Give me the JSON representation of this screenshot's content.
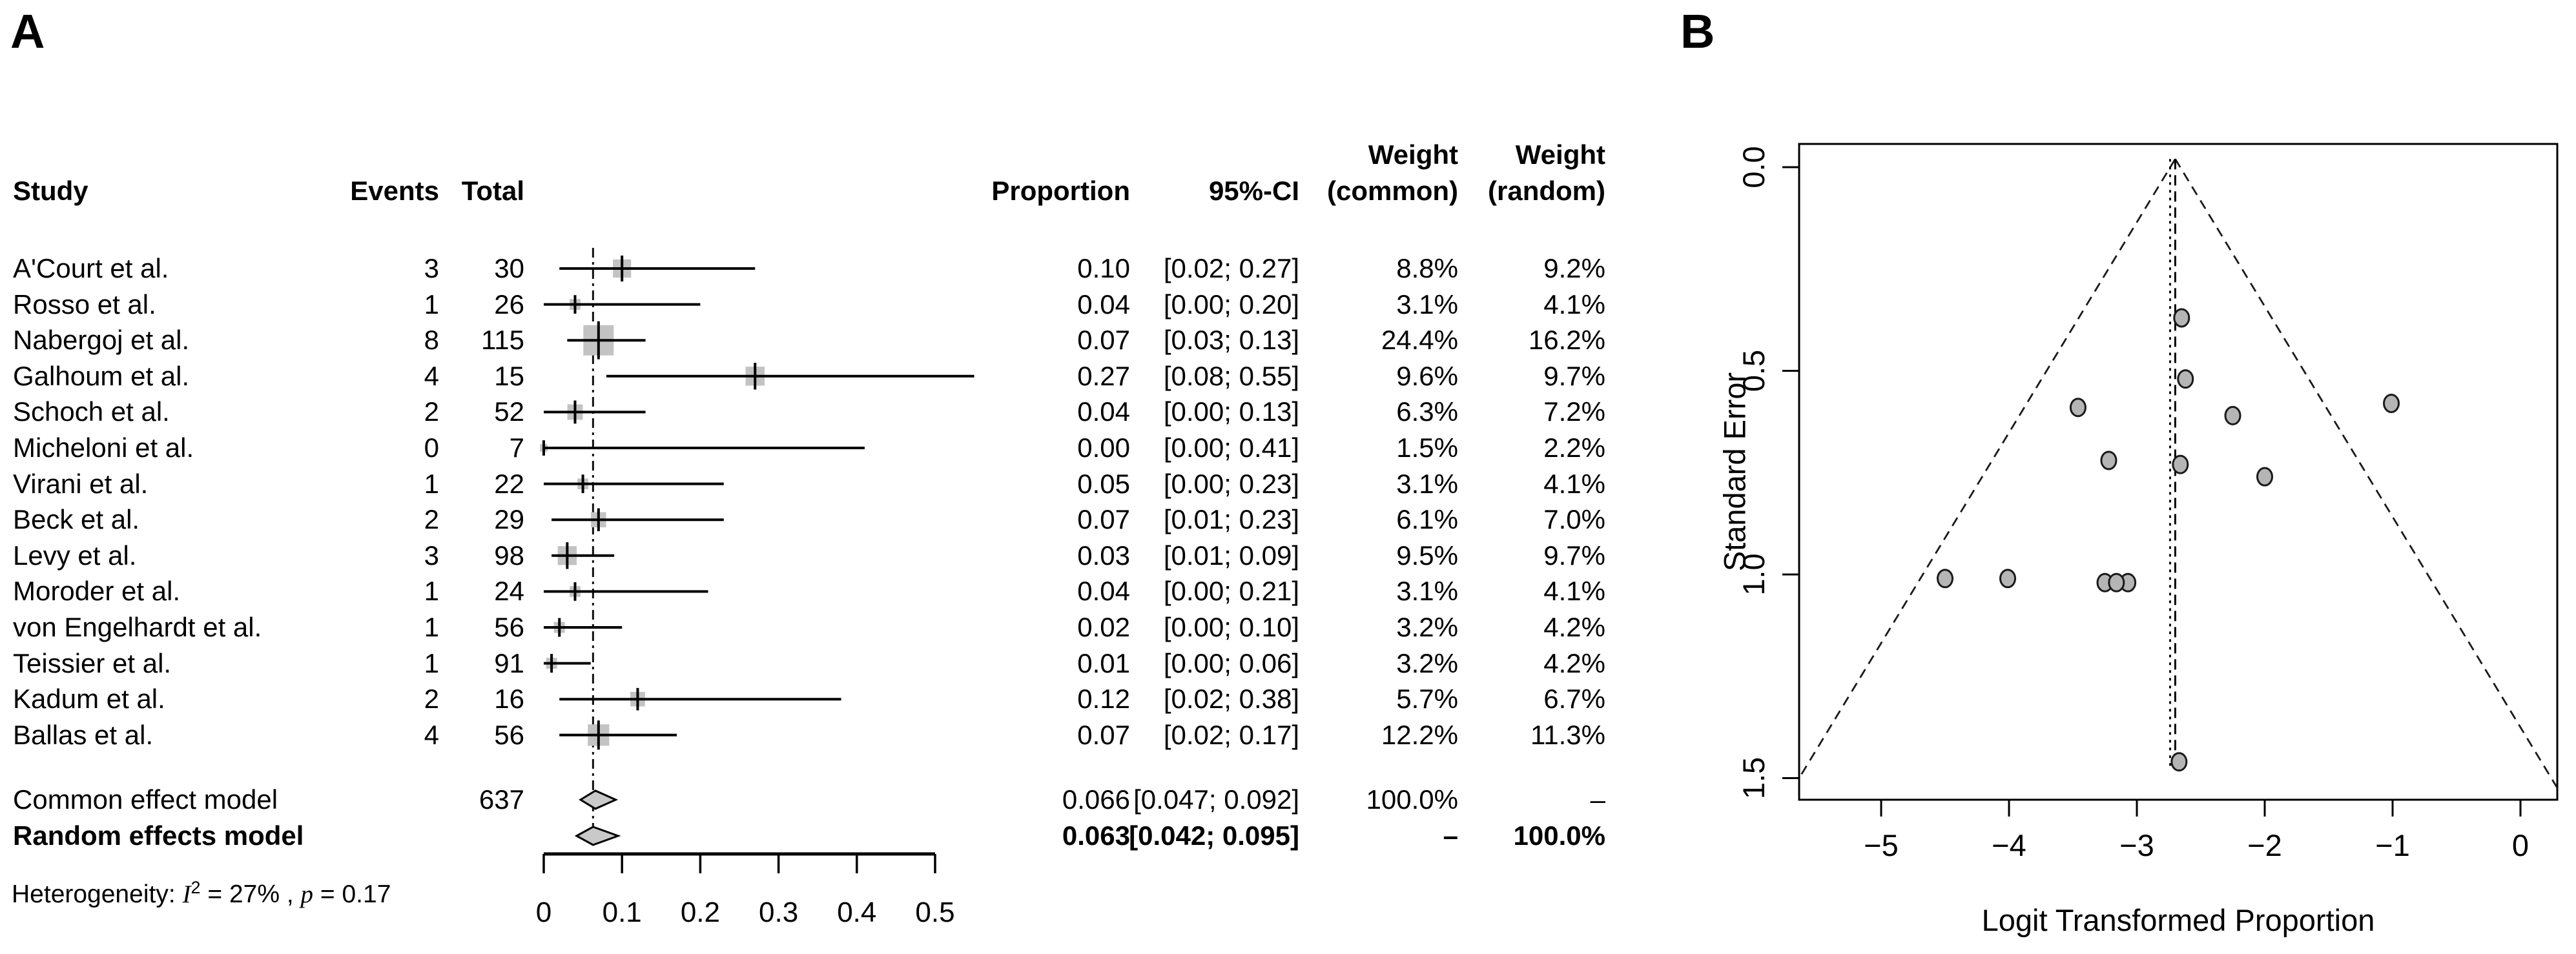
{
  "panels": {
    "a_label": "A",
    "b_label": "B"
  },
  "colors": {
    "background": "#ffffff",
    "text": "#000000",
    "square_fill": "#c3c3c3",
    "diamond_fill": "#c9c9c9",
    "funnel_point_fill": "#b5b5b5",
    "line": "#000000"
  },
  "chart_data": [
    {
      "type": "table",
      "subtype": "forest-plot",
      "title": "A",
      "columns": {
        "study": "Study",
        "events": "Events",
        "total": "Total",
        "proportion": "Proportion",
        "ci": "95%-CI",
        "weight_common_line1": "Weight",
        "weight_common_line2": "(common)",
        "weight_random_line1": "Weight",
        "weight_random_line2": "(random)"
      },
      "studies": [
        {
          "study": "A'Court et al.",
          "events": 3,
          "total": 30,
          "proportion": "0.10",
          "ci": "[0.02; 0.27]",
          "weight_common": "8.8%",
          "weight_random": "9.2%",
          "est": 0.1,
          "lo": 0.02,
          "hi": 0.27,
          "w": 8.8
        },
        {
          "study": "Rosso et al.",
          "events": 1,
          "total": 26,
          "proportion": "0.04",
          "ci": "[0.00; 0.20]",
          "weight_common": "3.1%",
          "weight_random": "4.1%",
          "est": 0.04,
          "lo": 0.0,
          "hi": 0.2,
          "w": 3.1
        },
        {
          "study": "Nabergoj et al.",
          "events": 8,
          "total": 115,
          "proportion": "0.07",
          "ci": "[0.03; 0.13]",
          "weight_common": "24.4%",
          "weight_random": "16.2%",
          "est": 0.07,
          "lo": 0.03,
          "hi": 0.13,
          "w": 24.4
        },
        {
          "study": "Galhoum et al.",
          "events": 4,
          "total": 15,
          "proportion": "0.27",
          "ci": "[0.08; 0.55]",
          "weight_common": "9.6%",
          "weight_random": "9.7%",
          "est": 0.27,
          "lo": 0.08,
          "hi": 0.55,
          "w": 9.6
        },
        {
          "study": "Schoch et al.",
          "events": 2,
          "total": 52,
          "proportion": "0.04",
          "ci": "[0.00; 0.13]",
          "weight_common": "6.3%",
          "weight_random": "7.2%",
          "est": 0.04,
          "lo": 0.0,
          "hi": 0.13,
          "w": 6.3
        },
        {
          "study": "Micheloni et al.",
          "events": 0,
          "total": 7,
          "proportion": "0.00",
          "ci": "[0.00; 0.41]",
          "weight_common": "1.5%",
          "weight_random": "2.2%",
          "est": 0.0,
          "lo": 0.0,
          "hi": 0.41,
          "w": 1.5
        },
        {
          "study": "Virani et al.",
          "events": 1,
          "total": 22,
          "proportion": "0.05",
          "ci": "[0.00; 0.23]",
          "weight_common": "3.1%",
          "weight_random": "4.1%",
          "est": 0.05,
          "lo": 0.0,
          "hi": 0.23,
          "w": 3.1
        },
        {
          "study": "Beck et al.",
          "events": 2,
          "total": 29,
          "proportion": "0.07",
          "ci": "[0.01; 0.23]",
          "weight_common": "6.1%",
          "weight_random": "7.0%",
          "est": 0.07,
          "lo": 0.01,
          "hi": 0.23,
          "w": 6.1
        },
        {
          "study": "Levy et al.",
          "events": 3,
          "total": 98,
          "proportion": "0.03",
          "ci": "[0.01; 0.09]",
          "weight_common": "9.5%",
          "weight_random": "9.7%",
          "est": 0.03,
          "lo": 0.01,
          "hi": 0.09,
          "w": 9.5
        },
        {
          "study": "Moroder et al.",
          "events": 1,
          "total": 24,
          "proportion": "0.04",
          "ci": "[0.00; 0.21]",
          "weight_common": "3.1%",
          "weight_random": "4.1%",
          "est": 0.04,
          "lo": 0.0,
          "hi": 0.21,
          "w": 3.1
        },
        {
          "study": "von Engelhardt et al.",
          "events": 1,
          "total": 56,
          "proportion": "0.02",
          "ci": "[0.00; 0.10]",
          "weight_common": "3.2%",
          "weight_random": "4.2%",
          "est": 0.02,
          "lo": 0.0,
          "hi": 0.1,
          "w": 3.2
        },
        {
          "study": "Teissier et al.",
          "events": 1,
          "total": 91,
          "proportion": "0.01",
          "ci": "[0.00; 0.06]",
          "weight_common": "3.2%",
          "weight_random": "4.2%",
          "est": 0.01,
          "lo": 0.0,
          "hi": 0.06,
          "w": 3.2
        },
        {
          "study": "Kadum et al.",
          "events": 2,
          "total": 16,
          "proportion": "0.12",
          "ci": "[0.02; 0.38]",
          "weight_common": "5.7%",
          "weight_random": "6.7%",
          "est": 0.12,
          "lo": 0.02,
          "hi": 0.38,
          "w": 5.7
        },
        {
          "study": "Ballas et al.",
          "events": 4,
          "total": 56,
          "proportion": "0.07",
          "ci": "[0.02; 0.17]",
          "weight_common": "12.2%",
          "weight_random": "11.3%",
          "est": 0.07,
          "lo": 0.02,
          "hi": 0.17,
          "w": 12.2
        }
      ],
      "common_effect": {
        "label": "Common effect model",
        "total": 637,
        "proportion": "0.066",
        "ci": "[0.047; 0.092]",
        "weight_common": "100.0%",
        "weight_random": "–",
        "est": 0.066,
        "lo": 0.047,
        "hi": 0.092
      },
      "random_effects": {
        "label": "Random effects model",
        "proportion": "0.063",
        "ci": "[0.042; 0.095]",
        "weight_common": "–",
        "weight_random": "100.0%",
        "est": 0.063,
        "lo": 0.042,
        "hi": 0.095
      },
      "heterogeneity": {
        "before": "Heterogeneity: ",
        "i": "I",
        "sup": "2",
        "mid": " = 27% , ",
        "p": "p",
        "after": " = 0.17"
      },
      "vline": 0.063,
      "xlim": [
        0,
        0.5
      ],
      "axis_ticks": [
        {
          "v": 0,
          "label": "0"
        },
        {
          "v": 0.1,
          "label": "0.1"
        },
        {
          "v": 0.2,
          "label": "0.2"
        },
        {
          "v": 0.3,
          "label": "0.3"
        },
        {
          "v": 0.4,
          "label": "0.4"
        },
        {
          "v": 0.5,
          "label": "0.5"
        }
      ]
    },
    {
      "type": "scatter",
      "subtype": "funnel-plot",
      "title": "B",
      "xlabel": "Logit Transformed Proportion",
      "ylabel": "Standard Error",
      "xlim": [
        -5.64,
        0.29
      ],
      "ylim": [
        0,
        1.55
      ],
      "y_inverted": true,
      "grid": false,
      "xticks": [
        {
          "v": -5,
          "label": "−5"
        },
        {
          "v": -4,
          "label": "−4"
        },
        {
          "v": -3,
          "label": "−3"
        },
        {
          "v": -2,
          "label": "−2"
        },
        {
          "v": -1,
          "label": "−1"
        },
        {
          "v": 0,
          "label": "0"
        }
      ],
      "yticks": [
        {
          "v": 0,
          "label": "0.0"
        },
        {
          "v": 0.5,
          "label": "0.5"
        },
        {
          "v": 1.0,
          "label": "1.0"
        },
        {
          "v": 1.5,
          "label": "1.5"
        }
      ],
      "center_line_dashed": -2.7,
      "center_line_dotted": -2.74,
      "pseudo_ci_multiplier": 1.96,
      "points": [
        {
          "study": "A'Court et al.",
          "x": -2.25,
          "se": 0.61
        },
        {
          "study": "Rosso et al.",
          "x": -3.25,
          "se": 1.02
        },
        {
          "study": "Nabergoj et al.",
          "x": -2.65,
          "se": 0.37
        },
        {
          "study": "Galhoum et al.",
          "x": -1.01,
          "se": 0.58
        },
        {
          "study": "Schoch et al.",
          "x": -3.22,
          "se": 0.72
        },
        {
          "study": "Micheloni et al.",
          "x": -2.67,
          "se": 1.46
        },
        {
          "study": "Virani et al.",
          "x": -3.07,
          "se": 1.02
        },
        {
          "study": "Beck et al.",
          "x": -2.66,
          "se": 0.73
        },
        {
          "study": "Levy et al.",
          "x": -3.46,
          "se": 0.59
        },
        {
          "study": "Moroder et al.",
          "x": -3.16,
          "se": 1.02
        },
        {
          "study": "von Engelhardt et al.",
          "x": -4.01,
          "se": 1.01
        },
        {
          "study": "Teissier et al.",
          "x": -4.5,
          "se": 1.01
        },
        {
          "study": "Kadum et al.",
          "x": -2.0,
          "se": 0.76
        },
        {
          "study": "Ballas et al.",
          "x": -2.62,
          "se": 0.52
        }
      ]
    }
  ]
}
